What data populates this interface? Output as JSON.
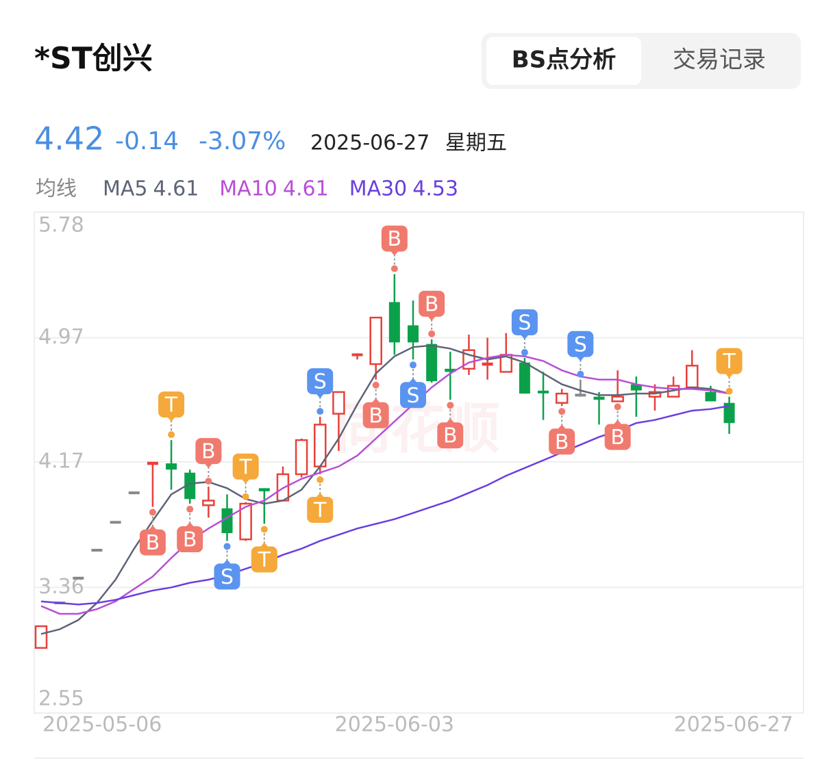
{
  "header": {
    "title": "*ST创兴",
    "tabs": [
      "BS点分析",
      "交易记录"
    ],
    "price": "4.42",
    "change": "-0.14",
    "change_pct": "-3.07%",
    "date": "2025-06-27",
    "weekday": "星期五",
    "ma_label": "均线"
  },
  "chart_data": {
    "type": "candlestick",
    "watermark": "同花顺",
    "categories": [
      "2025-05-06",
      null,
      null,
      null,
      null,
      null,
      null,
      null,
      null,
      null,
      null,
      null,
      null,
      null,
      null,
      null,
      null,
      null,
      null,
      "2025-06-03",
      null,
      null,
      null,
      null,
      null,
      null,
      null,
      null,
      null,
      null,
      null,
      null,
      null,
      null,
      null,
      null,
      null,
      "2025-06-27"
    ],
    "open": [
      2.97,
      3.26,
      3.42,
      3.6,
      3.78,
      3.97,
      4.15,
      4.16,
      4.1,
      3.89,
      3.87,
      3.67,
      4.0,
      3.92,
      4.09,
      4.14,
      4.48,
      4.85,
      4.8,
      5.2,
      5.05,
      4.93,
      4.77,
      4.77,
      4.79,
      4.75,
      4.81,
      4.62,
      4.55,
      4.6,
      4.59,
      4.56,
      4.67,
      4.59,
      4.59,
      4.65,
      4.62,
      4.55
    ],
    "high": [
      3.11,
      3.26,
      3.42,
      3.6,
      3.78,
      3.97,
      4.17,
      4.31,
      4.12,
      4.01,
      3.96,
      3.91,
      4.0,
      4.14,
      4.32,
      4.46,
      4.62,
      4.87,
      5.1,
      5.38,
      5.21,
      4.96,
      4.88,
      4.99,
      4.97,
      5.0,
      4.84,
      4.75,
      4.64,
      4.7,
      4.62,
      4.76,
      4.72,
      4.67,
      4.72,
      4.89,
      4.66,
      4.59
    ],
    "low": [
      2.97,
      3.26,
      3.42,
      3.6,
      3.78,
      3.97,
      3.88,
      3.99,
      3.9,
      3.81,
      3.66,
      3.66,
      3.77,
      3.92,
      4.07,
      4.09,
      4.24,
      4.83,
      4.7,
      4.86,
      4.83,
      4.68,
      4.57,
      4.73,
      4.7,
      4.75,
      4.61,
      4.44,
      4.53,
      4.59,
      4.41,
      4.56,
      4.46,
      4.5,
      4.59,
      4.64,
      4.56,
      4.35
    ],
    "close": [
      3.11,
      3.26,
      3.42,
      3.6,
      3.78,
      3.97,
      4.17,
      4.12,
      3.93,
      3.92,
      3.71,
      3.9,
      3.98,
      4.09,
      4.31,
      4.41,
      4.62,
      4.86,
      5.1,
      4.94,
      4.94,
      4.69,
      4.75,
      4.89,
      4.81,
      4.86,
      4.61,
      4.61,
      4.61,
      4.6,
      4.57,
      4.59,
      4.63,
      4.62,
      4.66,
      4.79,
      4.56,
      4.42
    ],
    "up_color": "#e8403a",
    "down_color": "#0ba14b",
    "flat_color": "#888888",
    "series": [
      {
        "name": "MA5",
        "color": "#5d6476",
        "current": 4.61,
        "values": [
          3.06,
          3.09,
          3.15,
          3.26,
          3.41,
          3.61,
          3.79,
          3.96,
          4.03,
          4.04,
          4.0,
          3.93,
          3.9,
          3.92,
          3.99,
          4.14,
          4.32,
          4.54,
          4.74,
          4.85,
          4.91,
          4.92,
          4.9,
          4.86,
          4.83,
          4.85,
          4.81,
          4.74,
          4.67,
          4.63,
          4.6,
          4.6,
          4.61,
          4.61,
          4.63,
          4.65,
          4.64,
          4.61
        ]
      },
      {
        "name": "MA10",
        "color": "#b94ed6",
        "current": 4.61,
        "values": [
          3.24,
          3.19,
          3.19,
          3.22,
          3.27,
          3.35,
          3.43,
          3.55,
          3.66,
          3.74,
          3.81,
          3.88,
          3.92,
          4.0,
          4.06,
          4.1,
          4.14,
          4.21,
          4.32,
          4.43,
          4.54,
          4.65,
          4.74,
          4.81,
          4.84,
          4.86,
          4.85,
          4.82,
          4.76,
          4.72,
          4.7,
          4.7,
          4.67,
          4.65,
          4.64,
          4.64,
          4.63,
          4.61
        ]
      },
      {
        "name": "MA30",
        "color": "#6a3fe0",
        "current": 4.53,
        "values": [
          3.27,
          3.26,
          3.25,
          3.26,
          3.28,
          3.31,
          3.34,
          3.36,
          3.39,
          3.41,
          3.44,
          3.48,
          3.52,
          3.57,
          3.61,
          3.66,
          3.7,
          3.74,
          3.77,
          3.8,
          3.84,
          3.88,
          3.92,
          3.97,
          4.02,
          4.08,
          4.13,
          4.18,
          4.23,
          4.28,
          4.33,
          4.37,
          4.42,
          4.44,
          4.47,
          4.5,
          4.51,
          4.53
        ]
      }
    ],
    "signals": [
      {
        "index": 6,
        "label": "B",
        "position": "below"
      },
      {
        "index": 7,
        "label": "T",
        "position": "above"
      },
      {
        "index": 8,
        "label": "B",
        "position": "below"
      },
      {
        "index": 9,
        "label": "B",
        "position": "above"
      },
      {
        "index": 10,
        "label": "S",
        "position": "below"
      },
      {
        "index": 11,
        "label": "T",
        "position": "above"
      },
      {
        "index": 12,
        "label": "T",
        "position": "below"
      },
      {
        "index": 15,
        "label": "S",
        "position": "above"
      },
      {
        "index": 15,
        "label": "T",
        "position": "below"
      },
      {
        "index": 18,
        "label": "B",
        "position": "below"
      },
      {
        "index": 19,
        "label": "B",
        "position": "above"
      },
      {
        "index": 20,
        "label": "S",
        "position": "below"
      },
      {
        "index": 21,
        "label": "B",
        "position": "above"
      },
      {
        "index": 22,
        "label": "B",
        "position": "below"
      },
      {
        "index": 26,
        "label": "S",
        "position": "above"
      },
      {
        "index": 28,
        "label": "B",
        "position": "below"
      },
      {
        "index": 29,
        "label": "S",
        "position": "above"
      },
      {
        "index": 31,
        "label": "B",
        "position": "below"
      },
      {
        "index": 37,
        "label": "T",
        "position": "above"
      }
    ],
    "signal_colors": {
      "B": "#f07a6e",
      "S": "#5b94f0",
      "T": "#f5a93a"
    },
    "ylim": [
      2.55,
      5.78
    ],
    "yticks": [
      2.55,
      3.36,
      4.17,
      4.97,
      5.78
    ],
    "grid": true
  }
}
